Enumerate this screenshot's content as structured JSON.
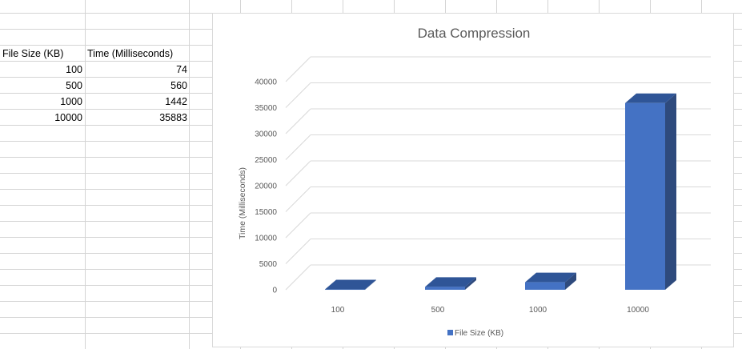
{
  "sheet": {
    "headers": [
      "File Size (KB)",
      "Time (Milliseconds)"
    ],
    "rows": [
      [
        "100",
        "74"
      ],
      [
        "500",
        "560"
      ],
      [
        "1000",
        "1442"
      ],
      [
        "10000",
        "35883"
      ]
    ]
  },
  "chart_data": {
    "type": "bar",
    "style": "3d-column",
    "title": "Data Compression",
    "xlabel": "",
    "ylabel": "Time (Milliseconds)",
    "categories": [
      "100",
      "500",
      "1000",
      "10000"
    ],
    "series": [
      {
        "name": "File Size (KB)",
        "values": [
          74,
          560,
          1442,
          35883
        ]
      }
    ],
    "ylim": [
      0,
      40000
    ],
    "yticks": [
      "0",
      "5000",
      "10000",
      "15000",
      "20000",
      "25000",
      "30000",
      "35000",
      "40000"
    ],
    "grid": true,
    "legend": "bottom",
    "colors": {
      "front": "#4472c4",
      "top": "#2f5597",
      "side": "#2e4a7d"
    }
  }
}
